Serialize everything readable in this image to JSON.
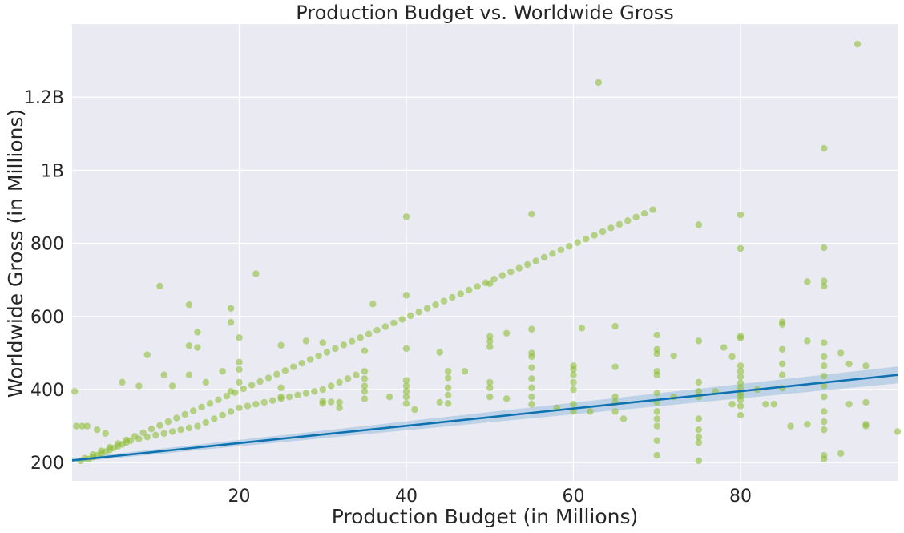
{
  "chart_data": {
    "type": "scatter",
    "title": "Production Budget vs. Worldwide Gross",
    "xlabel": "Production Budget (in Millions)",
    "ylabel": "Worldwide Gross (in Millions)",
    "xlim": [
      0,
      98.8
    ],
    "ylim": [
      150,
      1400
    ],
    "xticks": [
      {
        "value": 20,
        "label": "20"
      },
      {
        "value": 40,
        "label": "40"
      },
      {
        "value": 60,
        "label": "60"
      },
      {
        "value": 80,
        "label": "80"
      }
    ],
    "yticks": [
      {
        "value": 200,
        "label": "200"
      },
      {
        "value": 400,
        "label": "400"
      },
      {
        "value": 600,
        "label": "600"
      },
      {
        "value": 800,
        "label": "800"
      },
      {
        "value": 1000,
        "label": "1B"
      },
      {
        "value": 1200,
        "label": "1.2B"
      }
    ],
    "grid": true,
    "colors": {
      "points": "#8DBE38",
      "line": "#0F72B0",
      "band": "#A9C8E2"
    },
    "regression": {
      "x": [
        0,
        98.8
      ],
      "y": [
        206,
        440
      ],
      "ci_lower": [
        201,
        417
      ],
      "ci_upper": [
        211,
        463
      ]
    },
    "series": [
      {
        "name": "films",
        "points": [
          [
            94,
            1345
          ],
          [
            63,
            1240
          ],
          [
            90,
            1060
          ],
          [
            40,
            873
          ],
          [
            55,
            880
          ],
          [
            75,
            851
          ],
          [
            80,
            878
          ],
          [
            80,
            786
          ],
          [
            90,
            788
          ],
          [
            50,
            690
          ],
          [
            88,
            695
          ],
          [
            90,
            697
          ],
          [
            90,
            683
          ],
          [
            22,
            717
          ],
          [
            10.5,
            683
          ],
          [
            14,
            632
          ],
          [
            19,
            622
          ],
          [
            19,
            584
          ],
          [
            36,
            634
          ],
          [
            40,
            658
          ],
          [
            15,
            557
          ],
          [
            52,
            554
          ],
          [
            61,
            568
          ],
          [
            65,
            573
          ],
          [
            55,
            565
          ],
          [
            70,
            549
          ],
          [
            80,
            546
          ],
          [
            80,
            541
          ],
          [
            85,
            585
          ],
          [
            85,
            578
          ],
          [
            90,
            528
          ],
          [
            20,
            542
          ],
          [
            25,
            521
          ],
          [
            28,
            533
          ],
          [
            30,
            528
          ],
          [
            14,
            520
          ],
          [
            15,
            515
          ],
          [
            9,
            495
          ],
          [
            35,
            506
          ],
          [
            40,
            512
          ],
          [
            44,
            502
          ],
          [
            50,
            545
          ],
          [
            50,
            532
          ],
          [
            50,
            517
          ],
          [
            55,
            500
          ],
          [
            55,
            490
          ],
          [
            60,
            465
          ],
          [
            60,
            455
          ],
          [
            65,
            462
          ],
          [
            70,
            510
          ],
          [
            70,
            498
          ],
          [
            70,
            450
          ],
          [
            70,
            440
          ],
          [
            72,
            492
          ],
          [
            75,
            533
          ],
          [
            78,
            515
          ],
          [
            79,
            490
          ],
          [
            80,
            465
          ],
          [
            80,
            450
          ],
          [
            80,
            435
          ],
          [
            80,
            418
          ],
          [
            80,
            404
          ],
          [
            80,
            390
          ],
          [
            80,
            382
          ],
          [
            80,
            372
          ],
          [
            80,
            355
          ],
          [
            80,
            330
          ],
          [
            85,
            510
          ],
          [
            85,
            470
          ],
          [
            85,
            440
          ],
          [
            85,
            404
          ],
          [
            88,
            533
          ],
          [
            90,
            490
          ],
          [
            90,
            465
          ],
          [
            90,
            437
          ],
          [
            90,
            410
          ],
          [
            90,
            380
          ],
          [
            90,
            340
          ],
          [
            90,
            312
          ],
          [
            90,
            290
          ],
          [
            90,
            220
          ],
          [
            90,
            210
          ],
          [
            92,
            500
          ],
          [
            93,
            470
          ],
          [
            95,
            465
          ],
          [
            95,
            365
          ],
          [
            95,
            305
          ],
          [
            95,
            300
          ],
          [
            98.8,
            285
          ],
          [
            0.3,
            395
          ],
          [
            0.5,
            300
          ],
          [
            1.2,
            300
          ],
          [
            1.8,
            300
          ],
          [
            3,
            290
          ],
          [
            4,
            280
          ],
          [
            6,
            420
          ],
          [
            8,
            410
          ],
          [
            11,
            440
          ],
          [
            12,
            410
          ],
          [
            14,
            440
          ],
          [
            16,
            420
          ],
          [
            18,
            450
          ],
          [
            19,
            395
          ],
          [
            20,
            475
          ],
          [
            20,
            455
          ],
          [
            20,
            420
          ],
          [
            25,
            405
          ],
          [
            25,
            380
          ],
          [
            30,
            368
          ],
          [
            30,
            362
          ],
          [
            31,
            366
          ],
          [
            32,
            365
          ],
          [
            32,
            350
          ],
          [
            35,
            430
          ],
          [
            35,
            410
          ],
          [
            35,
            395
          ],
          [
            35,
            375
          ],
          [
            38,
            380
          ],
          [
            40,
            425
          ],
          [
            40,
            410
          ],
          [
            40,
            395
          ],
          [
            40,
            380
          ],
          [
            40,
            362
          ],
          [
            41,
            345
          ],
          [
            44,
            365
          ],
          [
            45,
            450
          ],
          [
            45,
            432
          ],
          [
            45,
            405
          ],
          [
            45,
            385
          ],
          [
            45,
            362
          ],
          [
            47,
            450
          ],
          [
            50,
            420
          ],
          [
            50,
            405
          ],
          [
            50,
            380
          ],
          [
            52,
            375
          ],
          [
            55,
            460
          ],
          [
            55,
            430
          ],
          [
            55,
            405
          ],
          [
            55,
            380
          ],
          [
            55,
            360
          ],
          [
            58,
            350
          ],
          [
            60,
            440
          ],
          [
            60,
            420
          ],
          [
            60,
            400
          ],
          [
            60,
            360
          ],
          [
            60,
            340
          ],
          [
            62,
            340
          ],
          [
            65,
            380
          ],
          [
            65,
            365
          ],
          [
            65,
            340
          ],
          [
            66,
            320
          ],
          [
            70,
            390
          ],
          [
            70,
            365
          ],
          [
            70,
            340
          ],
          [
            70,
            320
          ],
          [
            70,
            300
          ],
          [
            70,
            260
          ],
          [
            70,
            220
          ],
          [
            72,
            380
          ],
          [
            75,
            420
          ],
          [
            75,
            395
          ],
          [
            75,
            380
          ],
          [
            75,
            320
          ],
          [
            75,
            290
          ],
          [
            75,
            270
          ],
          [
            75,
            255
          ],
          [
            75,
            205
          ],
          [
            77,
            395
          ],
          [
            79,
            360
          ],
          [
            82,
            400
          ],
          [
            83,
            360
          ],
          [
            84,
            360
          ],
          [
            86,
            300
          ],
          [
            88,
            305
          ],
          [
            92,
            225
          ],
          [
            93,
            360
          ],
          [
            2,
            210
          ],
          [
            2.5,
            215
          ],
          [
            3,
            220
          ],
          [
            3.5,
            225
          ],
          [
            4,
            230
          ],
          [
            4.5,
            235
          ],
          [
            5,
            240
          ],
          [
            5.5,
            245
          ],
          [
            6,
            250
          ],
          [
            6.5,
            255
          ],
          [
            7,
            260
          ],
          [
            8,
            265
          ],
          [
            9,
            270
          ],
          [
            10,
            275
          ],
          [
            11,
            280
          ],
          [
            12,
            285
          ],
          [
            13,
            290
          ],
          [
            14,
            295
          ],
          [
            15,
            300
          ],
          [
            16,
            310
          ],
          [
            17,
            320
          ],
          [
            18,
            330
          ],
          [
            19,
            340
          ],
          [
            20,
            350
          ],
          [
            21,
            355
          ],
          [
            22,
            360
          ],
          [
            23,
            365
          ],
          [
            24,
            370
          ],
          [
            25,
            375
          ],
          [
            26,
            380
          ],
          [
            27,
            385
          ],
          [
            28,
            390
          ],
          [
            29,
            395
          ],
          [
            30,
            400
          ],
          [
            31,
            410
          ],
          [
            32,
            420
          ],
          [
            33,
            430
          ],
          [
            34,
            440
          ],
          [
            35,
            450
          ],
          [
            1,
            205
          ],
          [
            1.5,
            212
          ],
          [
            2.5,
            222
          ],
          [
            3.5,
            232
          ],
          [
            4.5,
            242
          ],
          [
            5.5,
            252
          ],
          [
            6.5,
            262
          ],
          [
            7.5,
            272
          ],
          [
            8.5,
            282
          ],
          [
            9.5,
            292
          ],
          [
            10.5,
            302
          ],
          [
            11.5,
            312
          ],
          [
            12.5,
            322
          ],
          [
            13.5,
            332
          ],
          [
            14.5,
            342
          ],
          [
            15.5,
            352
          ],
          [
            16.5,
            362
          ],
          [
            17.5,
            372
          ],
          [
            18.5,
            382
          ],
          [
            19.5,
            392
          ],
          [
            20.5,
            402
          ],
          [
            21.5,
            412
          ],
          [
            22.5,
            422
          ],
          [
            23.5,
            432
          ],
          [
            24.5,
            442
          ],
          [
            25.5,
            452
          ],
          [
            26.5,
            462
          ],
          [
            27.5,
            472
          ],
          [
            28.5,
            482
          ],
          [
            29.5,
            492
          ],
          [
            30.5,
            502
          ],
          [
            31.5,
            512
          ],
          [
            32.5,
            522
          ],
          [
            33.5,
            532
          ],
          [
            34.5,
            542
          ],
          [
            35.5,
            552
          ],
          [
            36.5,
            562
          ],
          [
            37.5,
            572
          ],
          [
            38.5,
            582
          ],
          [
            39.5,
            592
          ],
          [
            40.5,
            602
          ],
          [
            41.5,
            612
          ],
          [
            42.5,
            622
          ],
          [
            43.5,
            632
          ],
          [
            44.5,
            642
          ],
          [
            45.5,
            652
          ],
          [
            46.5,
            662
          ],
          [
            47.5,
            672
          ],
          [
            48.5,
            682
          ],
          [
            49.5,
            692
          ],
          [
            50.5,
            702
          ],
          [
            51.5,
            712
          ],
          [
            52.5,
            722
          ],
          [
            53.5,
            732
          ],
          [
            54.5,
            742
          ],
          [
            55.5,
            752
          ],
          [
            56.5,
            762
          ],
          [
            57.5,
            772
          ],
          [
            58.5,
            782
          ],
          [
            59.5,
            792
          ],
          [
            60.5,
            802
          ],
          [
            61.5,
            812
          ],
          [
            62.5,
            822
          ],
          [
            63.5,
            832
          ],
          [
            64.5,
            842
          ],
          [
            65.5,
            852
          ],
          [
            66.5,
            862
          ],
          [
            67.5,
            872
          ],
          [
            68.5,
            882
          ],
          [
            69.5,
            892
          ]
        ]
      }
    ]
  }
}
